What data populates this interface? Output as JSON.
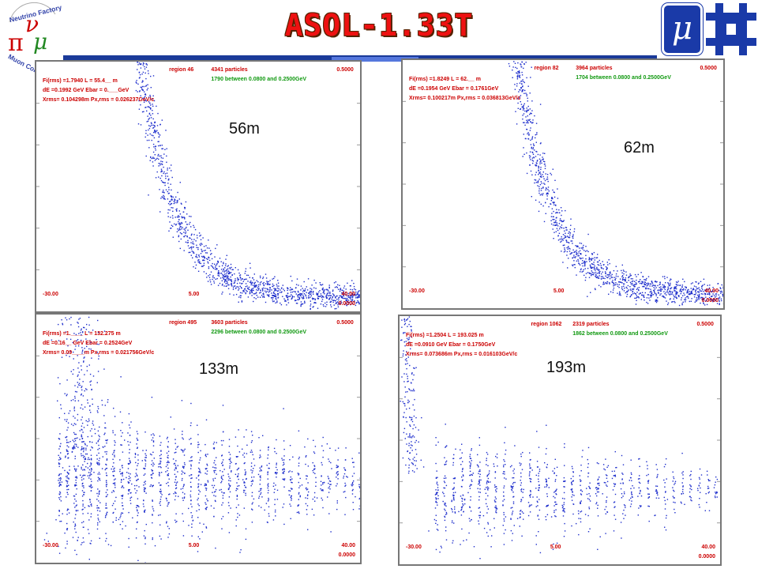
{
  "title": "ASOL-1.33T",
  "logos": {
    "nf_text": [
      "Neutrino Factory",
      "Muon Collider"
    ],
    "mu_symbol": "μ",
    "nf_icon": "neutrino-factory-logo",
    "fnal_icon": "fermilab-logo"
  },
  "colors": {
    "title": "#ee1111",
    "points": "#1f2fcc",
    "stats_green": "#119911",
    "stats_red": "#cc0000"
  },
  "chart_data": [
    {
      "type": "scatter",
      "label": "56m",
      "header": {
        "region": "region   46",
        "particles": "4341 particles",
        "top_value": "0.5000",
        "between": "1790 between 0.0800 and 0.2500GeV"
      },
      "stats": [
        "Fi(rms) =1.7940    L =  55.4__ m",
        "dE =0.1992 GeV   Ebar = 0.___GeV",
        "Xrms= 0.104298m    Px,rms = 0.026237GeV/c"
      ],
      "x_ticks": [
        "-30.00",
        "5.00",
        "40.00"
      ],
      "y_bottom": "0.0000",
      "xlim": [
        -30,
        40
      ],
      "ylim": [
        0,
        0.5
      ],
      "pattern": "band"
    },
    {
      "type": "scatter",
      "label": "62m",
      "header": {
        "region": "region   82",
        "particles": "3964 particles",
        "top_value": "0.5000",
        "between": "1704 between 0.0800 and 0.2500GeV"
      },
      "stats": [
        "Fi(rms) =1.8249    L =  62.__ m",
        "dE =0.1954 GeV   Ebar = 0.1761GeV",
        "Xrms= 0.100217m    Px,rms = 0.036813GeV/c"
      ],
      "x_ticks": [
        "-30.00",
        "5.00",
        "40.00"
      ],
      "y_bottom": "0.0000",
      "xlim": [
        -30,
        40
      ],
      "ylim": [
        0,
        0.5
      ],
      "pattern": "band"
    },
    {
      "type": "scatter",
      "label": "133m",
      "header": {
        "region": "region  495",
        "particles": "3603 particles",
        "top_value": "0.5000",
        "between": "2296 between 0.0800 and 0.2500GeV"
      },
      "stats": [
        "Fi(rms) =1.____    L = 132.275 m",
        "dE =0.16__ GeV   Ebar =  0.2524GeV",
        "Xrms= 0.09____m    Px,rms = 0.021756GeV/c"
      ],
      "x_ticks": [
        "-30.00",
        "5.00",
        "40.00"
      ],
      "y_bottom": "0.0000",
      "xlim": [
        -30,
        40
      ],
      "ylim": [
        0,
        0.5
      ],
      "pattern": "bunched"
    },
    {
      "type": "scatter",
      "label": "193m",
      "header": {
        "region": "region 1062",
        "particles": "2319 particles",
        "top_value": "0.5000",
        "between": "1862 between 0.0800 and 0.2500GeV"
      },
      "stats": [
        "Fi(rms) =1.2504    L = 193.025 m",
        "dE =0.0910 GeV   Ebar =  0.1750GeV",
        "Xrms= 0.073686m    Px,rms = 0.016103GeV/c"
      ],
      "x_ticks": [
        "-30.00",
        "5.00",
        "40.00"
      ],
      "y_bottom": "0.0000",
      "xlim": [
        -30,
        40
      ],
      "ylim": [
        0,
        0.5
      ],
      "pattern": "bunched"
    }
  ]
}
